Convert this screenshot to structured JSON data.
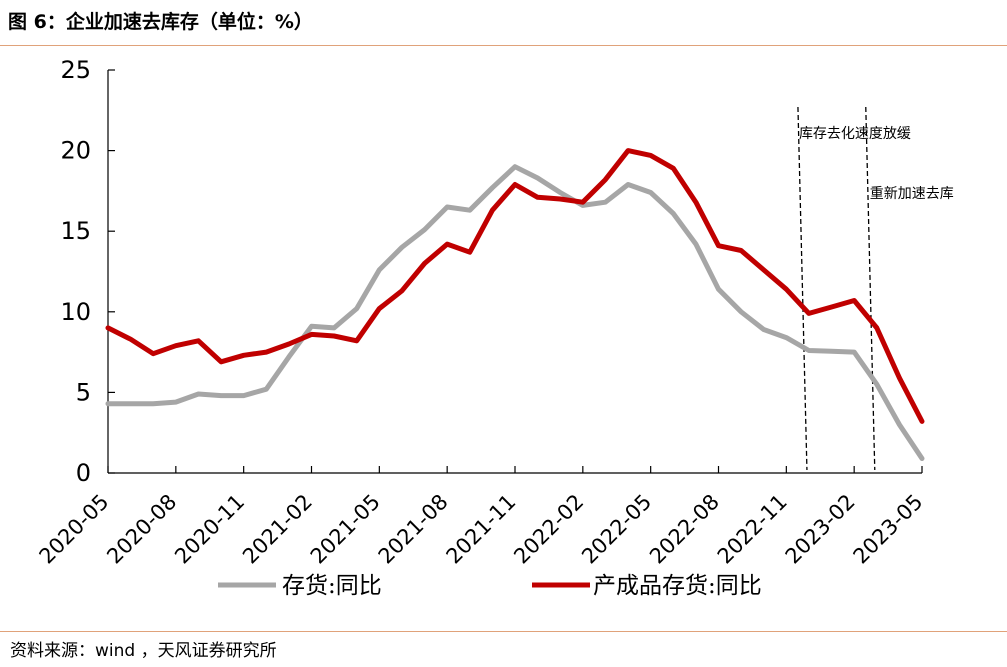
{
  "header": {
    "title": "图 6：企业加速去库存（单位：%）"
  },
  "footer": {
    "source": "资料来源：wind ，天风证券研究所"
  },
  "chart_data": {
    "type": "line",
    "x": [
      "2020-05",
      "2020-06",
      "2020-07",
      "2020-08",
      "2020-09",
      "2020-10",
      "2020-11",
      "2020-12",
      "2021-01",
      "2021-02",
      "2021-03",
      "2021-04",
      "2021-05",
      "2021-06",
      "2021-07",
      "2021-08",
      "2021-09",
      "2021-10",
      "2021-11",
      "2021-12",
      "2022-01",
      "2022-02",
      "2022-03",
      "2022-04",
      "2022-05",
      "2022-06",
      "2022-07",
      "2022-08",
      "2022-09",
      "2022-10",
      "2022-11",
      "2022-12",
      "2023-01",
      "2023-02",
      "2023-03",
      "2023-04",
      "2023-05"
    ],
    "x_tick_labels": [
      "2020-05",
      "2020-08",
      "2020-11",
      "2021-02",
      "2021-05",
      "2021-08",
      "2021-11",
      "2022-02",
      "2022-05",
      "2022-08",
      "2022-11",
      "2023-02",
      "2023-05"
    ],
    "ylim": [
      0,
      25
    ],
    "y_ticks": [
      0,
      5,
      10,
      15,
      20,
      25
    ],
    "grid": false,
    "legend_position": "bottom",
    "series": [
      {
        "name": "存货:同比",
        "color": "#a6a6a6",
        "values": [
          4.3,
          4.3,
          4.3,
          4.4,
          4.9,
          4.8,
          4.8,
          5.2,
          7.2,
          9.1,
          9.0,
          10.2,
          12.6,
          14.0,
          15.1,
          16.5,
          16.3,
          17.7,
          19.0,
          18.3,
          17.4,
          16.6,
          16.8,
          17.9,
          17.4,
          16.1,
          14.2,
          11.4,
          10.0,
          8.9,
          8.4,
          7.6,
          7.55,
          7.5,
          5.5,
          3.0,
          0.9
        ]
      },
      {
        "name": "产成品存货:同比",
        "color": "#c00000",
        "values": [
          9.0,
          8.3,
          7.4,
          7.9,
          8.2,
          6.9,
          7.3,
          7.5,
          8.0,
          8.6,
          8.5,
          8.2,
          10.2,
          11.3,
          13.0,
          14.2,
          13.7,
          16.3,
          17.9,
          17.1,
          17.0,
          16.8,
          18.2,
          20.0,
          19.7,
          18.9,
          16.8,
          14.1,
          13.8,
          12.6,
          11.4,
          9.9,
          10.3,
          10.7,
          9.0,
          5.9,
          3.2
        ]
      }
    ],
    "annotations": [
      {
        "text": "库存去化速度放缓",
        "x": "2022-12"
      },
      {
        "text": "重新加速去库",
        "x": "2023-03"
      }
    ]
  }
}
